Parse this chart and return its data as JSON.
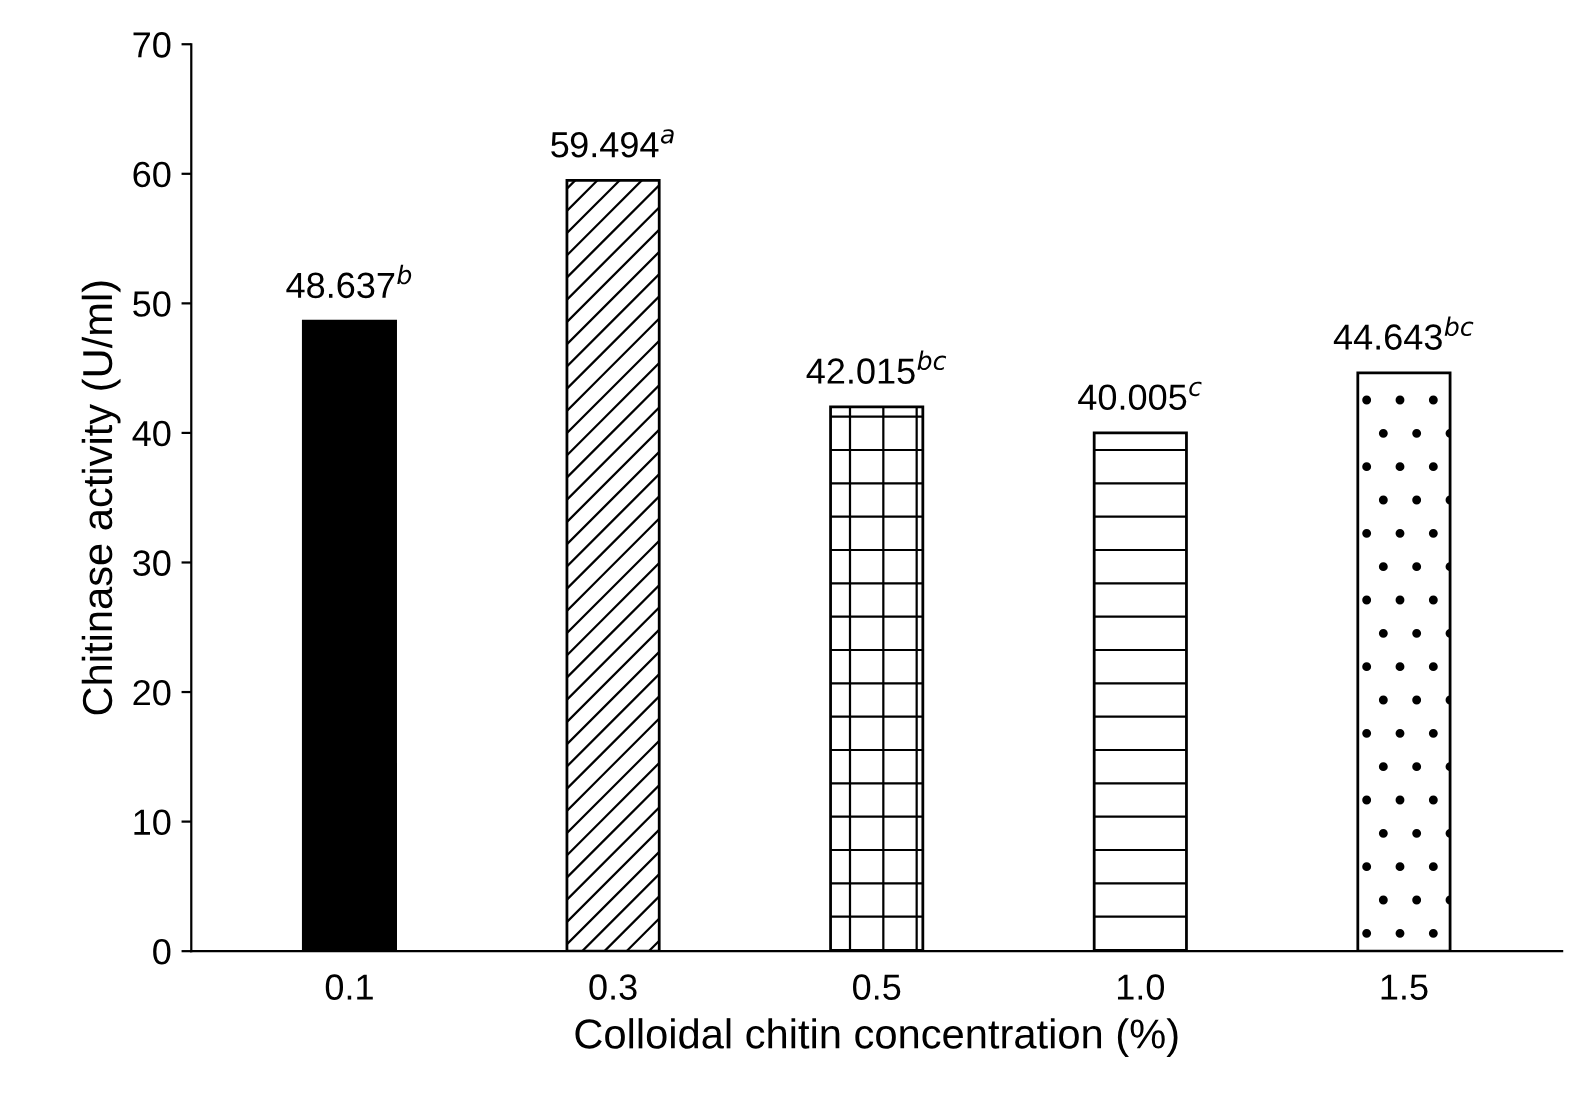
{
  "chart_data": {
    "type": "bar",
    "xlabel": "Colloidal chitin concentration (%)",
    "ylabel": "Chitinase activity (U/ml)",
    "categories": [
      "0.1",
      "0.3",
      "0.5",
      "1.0",
      "1.5"
    ],
    "values": [
      48.637,
      59.494,
      42.015,
      40.005,
      44.643
    ],
    "value_labels": [
      "48.637$^{b}$",
      "59.494$^{a}$",
      "42.015$^{bc}$",
      "40.005$^{c}$",
      "44.643$^{bc}$"
    ],
    "colors": [
      "#000000",
      "#000000",
      "#000000",
      "#000000",
      "#000000"
    ],
    "ylim": [
      0,
      70
    ],
    "yticks": [
      0,
      10,
      20,
      30,
      40,
      50,
      60,
      70
    ],
    "grid": false,
    "legend": false
  }
}
